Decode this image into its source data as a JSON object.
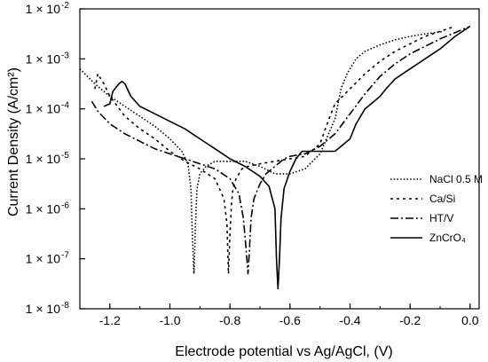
{
  "chart_data": {
    "type": "line",
    "xlabel": "Electrode potential vs Ag/AgCl, (V)",
    "ylabel": "Current Density (A/cm²)",
    "xlim": [
      -1.3,
      0.03
    ],
    "ylim_exponent": [
      -8,
      -2
    ],
    "y_scale": "log",
    "x_ticks": [
      -1.2,
      -1.0,
      -0.8,
      -0.6,
      -0.4,
      -0.2,
      0.0
    ],
    "x_tick_labels": [
      "-1.2",
      "-1.0",
      "-0.8",
      "-0.6",
      "-0.4",
      "-0.2",
      "0.0"
    ],
    "y_ticks": [
      -8,
      -7,
      -6,
      -5,
      -4,
      -3,
      -2
    ],
    "y_tick_labels": [
      "1 × 10",
      "1 × 10",
      "1 × 10",
      "1 × 10",
      "1 × 10",
      "1 × 10",
      "1 × 10"
    ],
    "y_tick_exponents": [
      "-8",
      "-7",
      "-6",
      "-5",
      "-4",
      "-3",
      "-2"
    ],
    "legend_position": "right-center",
    "series": [
      {
        "name": "NaCl 0.5 M",
        "dash": "dotted",
        "x": [
          -1.3,
          -1.25,
          -1.2,
          -1.15,
          -1.1,
          -1.05,
          -1.0,
          -0.96,
          -0.94,
          -0.93,
          -0.925,
          -0.92,
          -0.915,
          -0.91,
          -0.9,
          -0.88,
          -0.85,
          -0.82,
          -0.8,
          -0.75,
          -0.7,
          -0.65,
          -0.6,
          -0.55,
          -0.5,
          -0.45,
          -0.43,
          -0.41,
          -0.4,
          -0.38,
          -0.35,
          -0.3,
          -0.25,
          -0.2,
          -0.15,
          -0.09
        ],
        "y": [
          -3.2,
          -3.5,
          -3.75,
          -3.95,
          -4.15,
          -4.35,
          -4.6,
          -4.85,
          -5.1,
          -5.6,
          -6.6,
          -7.3,
          -6.3,
          -5.6,
          -5.3,
          -5.15,
          -5.05,
          -5.05,
          -5.05,
          -5.05,
          -5.15,
          -5.3,
          -5.3,
          -5.2,
          -4.9,
          -4.2,
          -3.6,
          -3.3,
          -3.2,
          -3.0,
          -2.85,
          -2.72,
          -2.62,
          -2.55,
          -2.5,
          -2.45
        ]
      },
      {
        "name": "Ca/Si",
        "dash": "short-dash",
        "x": [
          -1.25,
          -1.24,
          -1.22,
          -1.2,
          -1.15,
          -1.1,
          -1.05,
          -1.0,
          -0.95,
          -0.9,
          -0.85,
          -0.82,
          -0.81,
          -0.805,
          -0.8,
          -0.795,
          -0.79,
          -0.78,
          -0.76,
          -0.74,
          -0.7,
          -0.65,
          -0.6,
          -0.55,
          -0.5,
          -0.47,
          -0.45,
          -0.4,
          -0.35,
          -0.3,
          -0.25,
          -0.2,
          -0.15,
          -0.1,
          -0.05
        ],
        "y": [
          -3.6,
          -3.3,
          -3.5,
          -3.75,
          -4.15,
          -4.4,
          -4.6,
          -4.85,
          -5.05,
          -5.2,
          -5.4,
          -5.8,
          -6.3,
          -7.3,
          -6.5,
          -5.9,
          -5.6,
          -5.4,
          -5.2,
          -5.15,
          -5.1,
          -5.05,
          -5.0,
          -4.95,
          -4.7,
          -4.2,
          -3.9,
          -3.6,
          -3.3,
          -3.05,
          -2.85,
          -2.7,
          -2.55,
          -2.45,
          -2.35
        ]
      },
      {
        "name": "HT/V",
        "dash": "dash-dot",
        "x": [
          -1.26,
          -1.24,
          -1.2,
          -1.15,
          -1.1,
          -1.05,
          -1.0,
          -0.95,
          -0.9,
          -0.85,
          -0.8,
          -0.77,
          -0.755,
          -0.745,
          -0.74,
          -0.735,
          -0.73,
          -0.72,
          -0.7,
          -0.68,
          -0.65,
          -0.62,
          -0.6,
          -0.55,
          -0.5,
          -0.45,
          -0.4,
          -0.35,
          -0.3,
          -0.25,
          -0.2,
          -0.15,
          -0.1,
          0.0
        ],
        "y": [
          -3.85,
          -4.05,
          -4.3,
          -4.5,
          -4.65,
          -4.8,
          -4.9,
          -5.0,
          -5.1,
          -5.2,
          -5.4,
          -5.7,
          -6.2,
          -6.9,
          -7.3,
          -6.8,
          -6.2,
          -5.8,
          -5.5,
          -5.3,
          -5.15,
          -5.0,
          -4.95,
          -4.9,
          -4.75,
          -4.5,
          -4.1,
          -3.7,
          -3.35,
          -3.1,
          -2.9,
          -2.75,
          -2.6,
          -2.35
        ]
      },
      {
        "name": "ZnCrO₄",
        "dash": "solid",
        "x": [
          -1.22,
          -1.2,
          -1.19,
          -1.17,
          -1.16,
          -1.15,
          -1.13,
          -1.1,
          -1.05,
          -1.0,
          -0.95,
          -0.9,
          -0.85,
          -0.8,
          -0.75,
          -0.7,
          -0.67,
          -0.65,
          -0.645,
          -0.64,
          -0.635,
          -0.63,
          -0.62,
          -0.6,
          -0.58,
          -0.56,
          -0.52,
          -0.45,
          -0.4,
          -0.38,
          -0.35,
          -0.3,
          -0.28,
          -0.25,
          -0.2,
          -0.15,
          -0.1,
          -0.05,
          0.0
        ],
        "y": [
          -3.95,
          -3.9,
          -3.65,
          -3.5,
          -3.45,
          -3.5,
          -3.75,
          -3.95,
          -4.1,
          -4.25,
          -4.4,
          -4.6,
          -4.8,
          -5.0,
          -5.15,
          -5.35,
          -5.55,
          -6.0,
          -7.0,
          -7.6,
          -7.0,
          -6.2,
          -5.6,
          -5.25,
          -5.0,
          -4.85,
          -4.85,
          -4.85,
          -4.6,
          -4.3,
          -4.0,
          -3.75,
          -3.6,
          -3.4,
          -3.2,
          -3.0,
          -2.8,
          -2.55,
          -2.35
        ]
      }
    ]
  }
}
